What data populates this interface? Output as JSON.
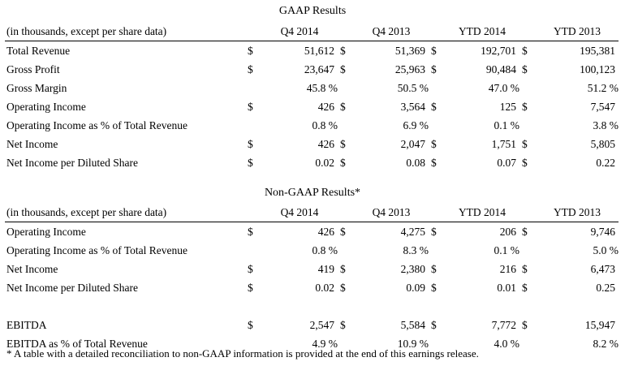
{
  "gaap": {
    "title": "GAAP Results",
    "header": {
      "label": "(in thousands, except per share data)",
      "cols": [
        "Q4 2014",
        "Q4 2013",
        "YTD 2014",
        "YTD 2013"
      ]
    },
    "rows": [
      {
        "label": "Total Revenue",
        "cells": [
          {
            "c": "$",
            "v": "51,612"
          },
          {
            "c": "$",
            "v": "51,369"
          },
          {
            "c": "$",
            "v": "192,701"
          },
          {
            "c": "$",
            "v": "195,381"
          }
        ]
      },
      {
        "label": "Gross Profit",
        "cells": [
          {
            "c": "$",
            "v": "23,647"
          },
          {
            "c": "$",
            "v": "25,963"
          },
          {
            "c": "$",
            "v": "90,484"
          },
          {
            "c": "$",
            "v": "100,123"
          }
        ]
      },
      {
        "label": "Gross Margin",
        "cells": [
          {
            "c": "",
            "v": "45.8 %"
          },
          {
            "c": "",
            "v": "50.5 %"
          },
          {
            "c": "",
            "v": "47.0 %"
          },
          {
            "c": "",
            "v": "51.2 %"
          }
        ]
      },
      {
        "label": "Operating Income",
        "cells": [
          {
            "c": "$",
            "v": "426"
          },
          {
            "c": "$",
            "v": "3,564"
          },
          {
            "c": "$",
            "v": "125"
          },
          {
            "c": "$",
            "v": "7,547"
          }
        ]
      },
      {
        "label": "Operating Income as % of Total Revenue",
        "cells": [
          {
            "c": "",
            "v": "0.8 %"
          },
          {
            "c": "",
            "v": "6.9 %"
          },
          {
            "c": "",
            "v": "0.1 %"
          },
          {
            "c": "",
            "v": "3.8 %"
          }
        ]
      },
      {
        "label": "Net Income",
        "cells": [
          {
            "c": "$",
            "v": "426"
          },
          {
            "c": "$",
            "v": "2,047"
          },
          {
            "c": "$",
            "v": "1,751"
          },
          {
            "c": "$",
            "v": "5,805"
          }
        ]
      },
      {
        "label": "Net Income per Diluted Share",
        "cells": [
          {
            "c": "$",
            "v": "0.02"
          },
          {
            "c": "$",
            "v": "0.08"
          },
          {
            "c": "$",
            "v": "0.07"
          },
          {
            "c": "$",
            "v": "0.22"
          }
        ]
      }
    ]
  },
  "nongaap": {
    "title": "Non-GAAP Results*",
    "header": {
      "label": "(in thousands, except per share data)",
      "cols": [
        "Q4 2014",
        "Q4 2013",
        "YTD 2014",
        "YTD 2013"
      ]
    },
    "rows": [
      {
        "label": "Operating Income",
        "cells": [
          {
            "c": "$",
            "v": "426"
          },
          {
            "c": "$",
            "v": "4,275"
          },
          {
            "c": "$",
            "v": "206"
          },
          {
            "c": "$",
            "v": "9,746"
          }
        ]
      },
      {
        "label": "Operating Income as % of Total Revenue",
        "cells": [
          {
            "c": "",
            "v": "0.8 %"
          },
          {
            "c": "",
            "v": "8.3 %"
          },
          {
            "c": "",
            "v": "0.1 %"
          },
          {
            "c": "",
            "v": "5.0 %"
          }
        ]
      },
      {
        "label": "Net Income",
        "cells": [
          {
            "c": "$",
            "v": "419"
          },
          {
            "c": "$",
            "v": "2,380"
          },
          {
            "c": "$",
            "v": "216"
          },
          {
            "c": "$",
            "v": "6,473"
          }
        ]
      },
      {
        "label": "Net Income per Diluted Share",
        "cells": [
          {
            "c": "$",
            "v": "0.02"
          },
          {
            "c": "$",
            "v": "0.09"
          },
          {
            "c": "$",
            "v": "0.01"
          },
          {
            "c": "$",
            "v": "0.25"
          }
        ]
      }
    ],
    "ebitda_rows": [
      {
        "label": "EBITDA",
        "cells": [
          {
            "c": "$",
            "v": "2,547"
          },
          {
            "c": "$",
            "v": "5,584"
          },
          {
            "c": "$",
            "v": "7,772"
          },
          {
            "c": "$",
            "v": "15,947"
          }
        ]
      },
      {
        "label": "EBITDA as % of Total Revenue",
        "cells": [
          {
            "c": "",
            "v": "4.9 %"
          },
          {
            "c": "",
            "v": "10.9 %"
          },
          {
            "c": "",
            "v": "4.0 %"
          },
          {
            "c": "",
            "v": "8.2 %"
          }
        ]
      }
    ]
  },
  "footnote": "* A table with a detailed reconciliation to non-GAAP information is provided at the end of this earnings release."
}
